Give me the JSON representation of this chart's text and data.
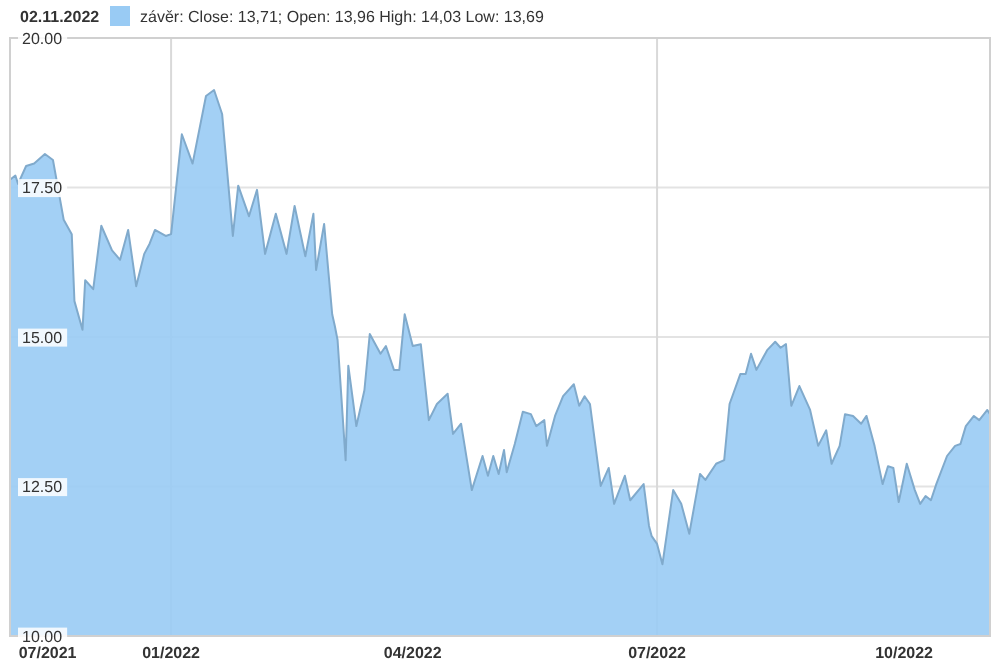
{
  "chart_data": {
    "type": "area",
    "title": "02.11.2022",
    "legend": "top",
    "grid": "y",
    "xlim": [
      "2021-11-02",
      "2022-11-02"
    ],
    "xticks": [
      {
        "value": "2021-11-16",
        "label": "07/2021"
      },
      {
        "value": "2022-01-01",
        "label": "01/2022"
      },
      {
        "value": "2022-04-01",
        "label": "04/2022"
      },
      {
        "value": "2022-07-01",
        "label": "07/2022"
      },
      {
        "value": "2022-10-01",
        "label": "10/2022"
      }
    ],
    "ylim": [
      10,
      20
    ],
    "yticks": [
      {
        "value": 10,
        "label": "10.00"
      },
      {
        "value": 12.5,
        "label": "12.50"
      },
      {
        "value": 15,
        "label": "15.00"
      },
      {
        "value": 17.5,
        "label": "17.50"
      },
      {
        "value": 20,
        "label": "20.00"
      }
    ],
    "ref_lines": [
      {
        "axis": "x",
        "value": "2022-01-01",
        "color": "#d9d9d9"
      },
      {
        "axis": "x",
        "value": "2022-07-01",
        "color": "#d9d9d9"
      }
    ],
    "series": [
      {
        "name": "závěr: Close: 13,71; Open: 13,96 High: 14,03 Low: 13,69",
        "color": "#99cbf4",
        "x": [
          "2021-11-02",
          "2021-11-04",
          "2021-11-05",
          "2021-11-08",
          "2021-11-11",
          "2021-11-15",
          "2021-11-18",
          "2021-11-20",
          "2021-11-22",
          "2021-11-25",
          "2021-11-26",
          "2021-11-29",
          "2021-11-30",
          "2021-12-03",
          "2021-12-06",
          "2021-12-10",
          "2021-12-13",
          "2021-12-16",
          "2021-12-19",
          "2021-12-22",
          "2021-12-24",
          "2021-12-26",
          "2021-12-30",
          "2022-01-01",
          "2022-01-05",
          "2022-01-09",
          "2022-01-14",
          "2022-01-17",
          "2022-01-20",
          "2022-01-24",
          "2022-01-26",
          "2022-01-30",
          "2022-02-02",
          "2022-02-05",
          "2022-02-09",
          "2022-02-13",
          "2022-02-16",
          "2022-02-20",
          "2022-02-23",
          "2022-02-24",
          "2022-02-27",
          "2022-03-02",
          "2022-03-03",
          "2022-03-04",
          "2022-03-07",
          "2022-03-08",
          "2022-03-11",
          "2022-03-14",
          "2022-03-16",
          "2022-03-20",
          "2022-03-22",
          "2022-03-25",
          "2022-03-27",
          "2022-03-29",
          "2022-04-01",
          "2022-04-04",
          "2022-04-07",
          "2022-04-10",
          "2022-04-14",
          "2022-04-16",
          "2022-04-19",
          "2022-04-23",
          "2022-04-27",
          "2022-04-29",
          "2022-05-01",
          "2022-05-03",
          "2022-05-05",
          "2022-05-06",
          "2022-05-09",
          "2022-05-12",
          "2022-05-15",
          "2022-05-17",
          "2022-05-20",
          "2022-05-21",
          "2022-05-24",
          "2022-05-27",
          "2022-05-31",
          "2022-06-02",
          "2022-06-04",
          "2022-06-06",
          "2022-06-10",
          "2022-06-13",
          "2022-06-15",
          "2022-06-19",
          "2022-06-21",
          "2022-06-26",
          "2022-06-28",
          "2022-06-29",
          "2022-07-01",
          "2022-07-03",
          "2022-07-07",
          "2022-07-10",
          "2022-07-13",
          "2022-07-17",
          "2022-07-19",
          "2022-07-23",
          "2022-07-26",
          "2022-07-28",
          "2022-08-01",
          "2022-08-03",
          "2022-08-05",
          "2022-08-07",
          "2022-08-11",
          "2022-08-14",
          "2022-08-16",
          "2022-08-18",
          "2022-08-20",
          "2022-08-23",
          "2022-08-27",
          "2022-08-30",
          "2022-09-02",
          "2022-09-04",
          "2022-09-07",
          "2022-09-09",
          "2022-09-12",
          "2022-09-15",
          "2022-09-17",
          "2022-09-20",
          "2022-09-23",
          "2022-09-25",
          "2022-09-27",
          "2022-09-29",
          "2022-10-02",
          "2022-10-05",
          "2022-10-07",
          "2022-10-09",
          "2022-10-11",
          "2022-10-13",
          "2022-10-17",
          "2022-10-20",
          "2022-10-22",
          "2022-10-24",
          "2022-10-27",
          "2022-10-29",
          "2022-11-01",
          "2022-11-02"
        ],
        "values": [
          17.63,
          17.7,
          17.56,
          17.86,
          17.9,
          18.06,
          17.96,
          17.46,
          16.96,
          16.72,
          15.6,
          15.12,
          15.95,
          15.8,
          16.86,
          16.45,
          16.29,
          16.79,
          15.85,
          16.39,
          16.56,
          16.79,
          16.69,
          16.72,
          18.39,
          17.9,
          19.03,
          19.13,
          18.73,
          16.69,
          17.53,
          17.02,
          17.46,
          16.39,
          17.06,
          16.39,
          17.19,
          16.35,
          17.06,
          16.12,
          16.89,
          15.38,
          15.18,
          14.95,
          12.94,
          14.52,
          13.51,
          14.11,
          15.05,
          14.72,
          14.85,
          14.45,
          14.45,
          15.38,
          14.85,
          14.88,
          13.61,
          13.88,
          14.05,
          13.38,
          13.55,
          12.44,
          13.01,
          12.68,
          13.01,
          12.71,
          13.11,
          12.74,
          13.21,
          13.75,
          13.71,
          13.51,
          13.61,
          13.18,
          13.68,
          14.01,
          14.21,
          13.85,
          14.01,
          13.88,
          12.51,
          12.81,
          12.21,
          12.68,
          12.27,
          12.54,
          11.84,
          11.67,
          11.54,
          11.2,
          12.44,
          12.21,
          11.71,
          12.71,
          12.61,
          12.88,
          12.94,
          13.88,
          14.38,
          14.38,
          14.72,
          14.45,
          14.78,
          14.92,
          14.82,
          14.88,
          13.85,
          14.18,
          13.78,
          13.18,
          13.44,
          12.88,
          13.18,
          13.71,
          13.68,
          13.55,
          13.68,
          13.18,
          12.54,
          12.84,
          12.81,
          12.24,
          12.88,
          12.44,
          12.21,
          12.34,
          12.27,
          12.54,
          13.01,
          13.18,
          13.21,
          13.51,
          13.68,
          13.61,
          13.78,
          13.71
        ]
      }
    ]
  }
}
